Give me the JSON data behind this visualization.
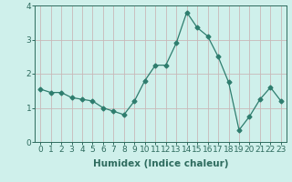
{
  "x": [
    0,
    1,
    2,
    3,
    4,
    5,
    6,
    7,
    8,
    9,
    10,
    11,
    12,
    13,
    14,
    15,
    16,
    17,
    18,
    19,
    20,
    21,
    22,
    23
  ],
  "y": [
    1.55,
    1.45,
    1.45,
    1.3,
    1.25,
    1.2,
    1.0,
    0.9,
    0.8,
    1.2,
    1.8,
    2.25,
    2.25,
    2.9,
    3.8,
    3.35,
    3.1,
    2.5,
    1.75,
    0.35,
    0.75,
    1.25,
    1.6,
    1.2
  ],
  "line_color": "#2e7d6e",
  "marker": "D",
  "marker_size": 2.5,
  "bg_color": "#cff0eb",
  "grid_color": "#c8b8b8",
  "xlabel": "Humidex (Indice chaleur)",
  "xlim": [
    -0.5,
    23.5
  ],
  "ylim": [
    0,
    4
  ],
  "yticks": [
    0,
    1,
    2,
    3,
    4
  ],
  "xticks": [
    0,
    1,
    2,
    3,
    4,
    5,
    6,
    7,
    8,
    9,
    10,
    11,
    12,
    13,
    14,
    15,
    16,
    17,
    18,
    19,
    20,
    21,
    22,
    23
  ],
  "tick_color": "#2e6b5e",
  "label_fontsize": 7.5,
  "tick_fontsize": 6.5
}
